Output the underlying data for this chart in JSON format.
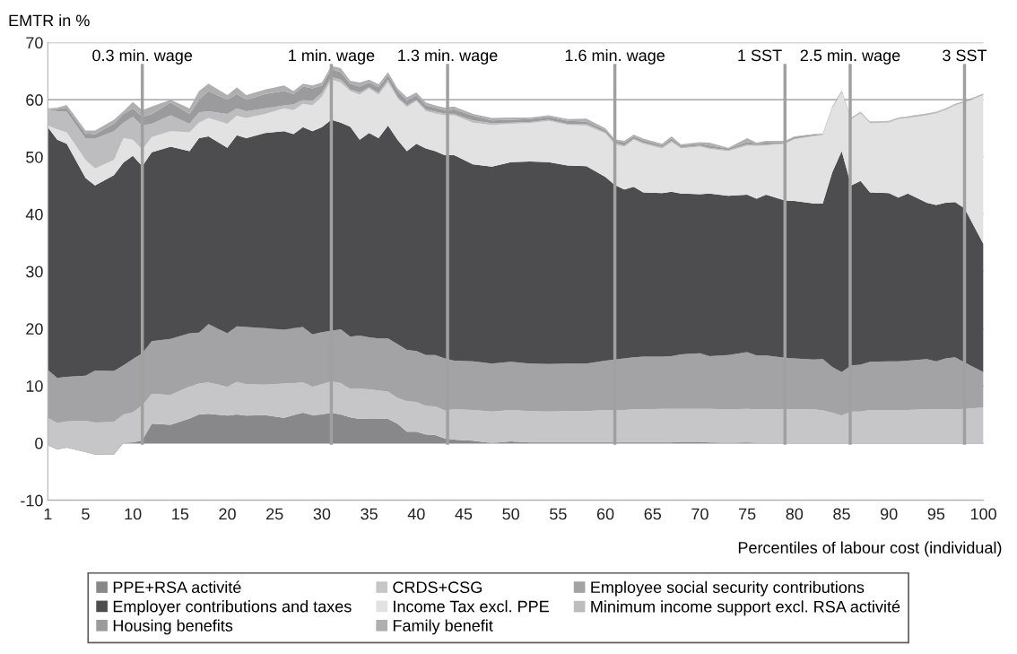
{
  "chart_data": {
    "type": "area",
    "stacked": true,
    "ylabel": "EMTR in %",
    "xlabel": "Percentiles of labour cost (individual)",
    "x": [
      1,
      2,
      3,
      5,
      6,
      8,
      9,
      10,
      11,
      12,
      14,
      16,
      17,
      18,
      20,
      21,
      22,
      24,
      26,
      27,
      28,
      29,
      30,
      31,
      32,
      33,
      34,
      35,
      36,
      37,
      38,
      39,
      40,
      41,
      42,
      43,
      44,
      46,
      48,
      50,
      52,
      54,
      56,
      58,
      60,
      61,
      62,
      63,
      64,
      66,
      67,
      68,
      70,
      71,
      73,
      75,
      76,
      77,
      79,
      80,
      82,
      83,
      84,
      85,
      86,
      87,
      88,
      90,
      91,
      92,
      94,
      95,
      96,
      97,
      98,
      100
    ],
    "xlim": [
      1,
      100
    ],
    "xticks": [
      1,
      5,
      10,
      15,
      20,
      25,
      30,
      35,
      40,
      45,
      50,
      55,
      60,
      65,
      70,
      75,
      80,
      85,
      90,
      95,
      100
    ],
    "ylim": [
      -10,
      70
    ],
    "yticks": [
      -10,
      0,
      10,
      20,
      30,
      40,
      50,
      60,
      70
    ],
    "grid": "y",
    "legend": "bottom",
    "series": [
      {
        "name": "PPE+RSA activité",
        "color": "#88888a",
        "values": [
          -0.4,
          -1.1,
          -0.8,
          -1.6,
          -2.0,
          -2.0,
          0.0,
          0.1,
          0.5,
          3.4,
          3.2,
          4.3,
          5.0,
          5.1,
          4.8,
          5.0,
          4.8,
          4.9,
          4.4,
          4.9,
          5.3,
          4.9,
          5.0,
          5.3,
          5.0,
          4.5,
          4.2,
          4.3,
          4.3,
          4.2,
          3.4,
          2.0,
          2.0,
          1.5,
          1.4,
          0.8,
          0.6,
          0.4,
          0.0,
          0.3,
          0.1,
          0.1,
          0.1,
          0.1,
          0.1,
          0.1,
          0.1,
          0.1,
          0.1,
          0.1,
          0.1,
          0.2,
          0.2,
          0.1,
          0.0,
          0.1,
          0.0,
          0.0,
          0.0,
          0.0,
          0.0,
          0.0,
          0.0,
          0.0,
          0.0,
          0.0,
          0.0,
          0.0,
          0.0,
          0.0,
          0.0,
          0.0,
          0.0,
          0.0,
          0.0,
          0.0
        ]
      },
      {
        "name": "CRDS+CSG",
        "color": "#c6c6c8",
        "values": [
          4.8,
          4.6,
          4.6,
          5.5,
          5.6,
          5.7,
          5.0,
          5.3,
          6.1,
          5.2,
          5.2,
          5.6,
          5.4,
          5.5,
          5.1,
          5.7,
          5.5,
          5.3,
          6.0,
          5.6,
          5.3,
          5.0,
          5.3,
          5.5,
          5.5,
          5.0,
          5.3,
          5.1,
          4.9,
          4.8,
          4.5,
          5.3,
          5.2,
          5.0,
          5.0,
          4.9,
          5.3,
          5.4,
          5.5,
          5.5,
          5.5,
          5.4,
          5.5,
          5.5,
          5.7,
          5.7,
          5.7,
          5.8,
          5.8,
          5.9,
          5.9,
          5.8,
          5.8,
          5.9,
          5.9,
          5.9,
          5.9,
          5.9,
          5.9,
          5.9,
          5.9,
          5.7,
          5.3,
          4.8,
          5.5,
          5.5,
          5.8,
          5.8,
          5.8,
          5.8,
          5.9,
          5.9,
          5.9,
          5.9,
          6.0,
          6.2
        ]
      },
      {
        "name": "Employee social security contributions",
        "color": "#a3a3a6",
        "values": [
          8.4,
          7.9,
          7.8,
          7.9,
          9.1,
          8.9,
          8.6,
          9.3,
          9.1,
          9.2,
          9.8,
          9.3,
          8.9,
          10.2,
          9.3,
          9.7,
          10.0,
          9.9,
          9.4,
          9.6,
          9.7,
          9.1,
          9.1,
          8.8,
          9.4,
          9.1,
          9.3,
          9.1,
          9.1,
          9.3,
          9.4,
          9.0,
          8.9,
          8.9,
          9.0,
          9.1,
          8.5,
          8.5,
          8.4,
          8.4,
          8.3,
          8.3,
          8.3,
          8.3,
          8.6,
          8.8,
          9.0,
          9.1,
          9.2,
          9.1,
          9.2,
          9.5,
          9.7,
          9.2,
          9.5,
          9.9,
          9.4,
          9.4,
          9.0,
          8.9,
          8.7,
          9.0,
          8.0,
          7.6,
          8.1,
          8.2,
          8.4,
          8.5,
          8.5,
          8.6,
          8.8,
          8.4,
          8.9,
          9.1,
          8.1,
          6.2
        ]
      },
      {
        "name": "Employer contributions and taxes",
        "color": "#4d4d4f",
        "values": [
          42.4,
          41.6,
          40.7,
          34.5,
          32.3,
          34.2,
          35.4,
          35.5,
          32.7,
          33.0,
          33.6,
          31.8,
          34.0,
          32.8,
          32.4,
          33.4,
          33.0,
          34.1,
          34.7,
          33.9,
          34.9,
          35.5,
          35.8,
          36.9,
          36.1,
          36.7,
          34.2,
          35.7,
          35.0,
          37.2,
          35.7,
          34.7,
          36.2,
          36.1,
          35.6,
          35.5,
          35.9,
          34.4,
          34.4,
          34.9,
          35.3,
          35.3,
          34.6,
          34.5,
          32.1,
          30.5,
          29.5,
          29.8,
          28.7,
          28.6,
          28.7,
          28.1,
          27.8,
          28.4,
          27.8,
          27.5,
          27.4,
          28.1,
          27.5,
          27.5,
          27.3,
          27.2,
          34.0,
          38.6,
          31.4,
          32.1,
          29.6,
          29.4,
          28.6,
          29.2,
          27.3,
          27.3,
          27.2,
          27.1,
          26.9,
          22.4
        ]
      },
      {
        "name": "Income Tax excl. PPE",
        "color": "#e2e2e3",
        "values": [
          0.3,
          1.8,
          2.0,
          3.2,
          3.0,
          2.7,
          4.3,
          2.8,
          2.9,
          2.7,
          2.7,
          3.3,
          2.7,
          3.2,
          4.2,
          3.4,
          3.5,
          3.3,
          4.0,
          4.2,
          4.1,
          4.5,
          5.3,
          7.0,
          7.0,
          6.2,
          7.9,
          7.8,
          7.6,
          7.5,
          7.3,
          7.7,
          7.5,
          6.5,
          6.6,
          7.0,
          7.0,
          7.3,
          7.3,
          6.7,
          6.7,
          7.2,
          7.1,
          7.1,
          7.6,
          7.1,
          7.5,
          8.2,
          8.5,
          7.8,
          8.7,
          7.9,
          8.3,
          7.8,
          7.8,
          8.6,
          9.2,
          8.6,
          9.9,
          10.8,
          11.7,
          11.9,
          11.2,
          10.3,
          11.6,
          11.8,
          12.1,
          12.3,
          13.7,
          13.2,
          15.3,
          16.0,
          16.2,
          16.9,
          18.5,
          26.0
        ]
      },
      {
        "name": "Minimum income support excl. RSA activité",
        "color": "#bdbdbf",
        "values": [
          2.8,
          3.2,
          3.6,
          3.7,
          5.2,
          5.0,
          2.7,
          4.0,
          4.2,
          2.3,
          2.8,
          1.5,
          1.8,
          1.2,
          1.7,
          1.3,
          1.2,
          1.0,
          0.5,
          1.0,
          0.7,
          0.8,
          0.7,
          0.5,
          0.5,
          0.3,
          0.4,
          0.2,
          0.3,
          0.5,
          0.2,
          0.3,
          0.2,
          0.3,
          0.3,
          0.3,
          0.2,
          0.4,
          0.3,
          0.2,
          0.2,
          0.2,
          0.2,
          0.3,
          0.2,
          0.3,
          0.2,
          0.2,
          0.2,
          0.2,
          0.2,
          0.2,
          0.2,
          0.2,
          0.2,
          0.2,
          0.2,
          0.2,
          0.1,
          0.1,
          0.1,
          0.1,
          0.1,
          0.1,
          0.1,
          0.1,
          0.1,
          0.1,
          0.1,
          0.1,
          0.1,
          0.1,
          0.1,
          0.1,
          0.1,
          0.1
        ]
      },
      {
        "name": "Housing benefits",
        "color": "#9b9b9d",
        "values": [
          0.1,
          0.4,
          0.7,
          0.9,
          0.8,
          1.3,
          1.5,
          1.5,
          1.5,
          1.7,
          2.2,
          1.7,
          2.2,
          3.5,
          2.5,
          2.5,
          2.0,
          2.5,
          2.5,
          1.8,
          2.3,
          2.2,
          1.3,
          1.3,
          1.3,
          1.0,
          1.0,
          0.8,
          1.0,
          0.8,
          1.1,
          0.8,
          0.8,
          0.7,
          0.7,
          0.6,
          0.8,
          0.8,
          0.5,
          0.5,
          0.5,
          0.5,
          0.5,
          0.4,
          0.4,
          0.4,
          0.5,
          0.4,
          0.4,
          0.3,
          0.4,
          0.3,
          0.3,
          0.4,
          0.3,
          0.4,
          0.3,
          0.3,
          0.2,
          0.3,
          0.2,
          0.1,
          0.1,
          0.1,
          0.1,
          0.1,
          0.1,
          0.1,
          0.1,
          0.1,
          0.1,
          0.1,
          0.1,
          0.1,
          0.1,
          0.1
        ]
      },
      {
        "name": "Family benefit",
        "color": "#afafb1",
        "values": [
          0.1,
          0.2,
          0.5,
          0.5,
          0.6,
          0.7,
          0.5,
          1.1,
          1.2,
          1.3,
          0.5,
          1.0,
          1.5,
          1.3,
          0.8,
          1.2,
          0.8,
          0.8,
          1.0,
          0.5,
          0.5,
          0.5,
          0.5,
          0.6,
          0.7,
          0.5,
          0.7,
          0.5,
          0.5,
          0.5,
          0.4,
          0.6,
          0.5,
          0.5,
          0.4,
          0.4,
          0.5,
          0.3,
          0.4,
          0.4,
          0.3,
          0.3,
          0.3,
          0.5,
          0.3,
          0.2,
          0.3,
          0.3,
          0.3,
          0.3,
          0.4,
          0.2,
          0.3,
          0.5,
          0.1,
          0.7,
          0.1,
          0.3,
          0.2,
          0.1,
          0.1,
          0.1,
          0.1,
          0.1,
          0.1,
          0.1,
          0.1,
          0.1,
          0.1,
          0.1,
          0.1,
          0.1,
          0.1,
          0.1,
          0.1,
          0.1
        ]
      }
    ],
    "ref_lines": [
      {
        "axis": "x",
        "value": 11,
        "label": "0.3 min. wage",
        "color": "#a0a0a0"
      },
      {
        "axis": "x",
        "value": 31,
        "label": "1 min. wage",
        "color": "#a0a0a0"
      },
      {
        "axis": "x",
        "value": 43.3,
        "label": "1.3 min. wage",
        "color": "#a0a0a0"
      },
      {
        "axis": "x",
        "value": 61,
        "label": "1.6 min. wage",
        "color": "#a0a0a0"
      },
      {
        "axis": "x",
        "value": 79,
        "label": "1 SST",
        "color": "#a0a0a0"
      },
      {
        "axis": "x",
        "value": 85.9,
        "label": "2.5 min. wage",
        "color": "#a0a0a0"
      },
      {
        "axis": "x",
        "value": 98,
        "label": "3 SST",
        "color": "#a0a0a0"
      }
    ]
  }
}
